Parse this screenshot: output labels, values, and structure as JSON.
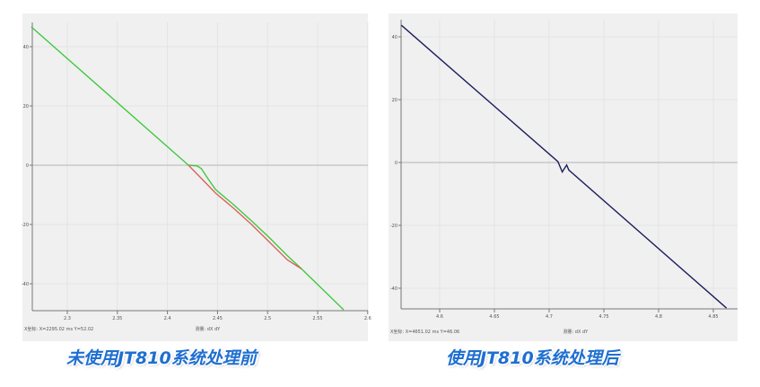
{
  "captions": [
    "未使用JT810系统处理前",
    "使用JT810系统处理后"
  ],
  "chart_data": [
    {
      "type": "line",
      "title": "",
      "xlabel": "",
      "ylabel": "",
      "xlim": [
        2.264,
        2.6
      ],
      "ylim": [
        -50,
        48
      ],
      "x_ticks": [
        "2.3",
        "2.35",
        "2.4",
        "2.45",
        "2.5",
        "2.55",
        "2.6"
      ],
      "x_tick_values": [
        2.3,
        2.35,
        2.4,
        2.45,
        2.5,
        2.55,
        2.6
      ],
      "y_ticks": [
        "40",
        "20",
        "0",
        "-20",
        "-40"
      ],
      "y_tick_values": [
        40,
        20,
        0,
        -20,
        -40
      ],
      "grid": true,
      "status_left": "X坐标: X=2295.02 ms   Y=52.02",
      "status_right": "测量: dX   dY",
      "series": [
        {
          "color": "#3ec93e",
          "points": [
            [
              2.264,
              46.7
            ],
            [
              2.421,
              0
            ],
            [
              2.43,
              -0.3
            ],
            [
              2.434,
              -1.2
            ],
            [
              2.441,
              -4.8
            ],
            [
              2.448,
              -8.2
            ],
            [
              2.466,
              -13.3
            ],
            [
              2.484,
              -18.8
            ],
            [
              2.502,
              -24.5
            ],
            [
              2.52,
              -30.6
            ],
            [
              2.534,
              -35
            ],
            [
              2.576,
              -48.8
            ]
          ]
        },
        {
          "color": "#d9625e",
          "points": [
            [
              2.421,
              0
            ],
            [
              2.436,
              -5.2
            ],
            [
              2.448,
              -9.4
            ],
            [
              2.466,
              -14.5
            ],
            [
              2.484,
              -20
            ],
            [
              2.502,
              -26
            ],
            [
              2.52,
              -32
            ],
            [
              2.534,
              -35
            ]
          ]
        }
      ]
    },
    {
      "type": "line",
      "title": "",
      "xlabel": "",
      "ylabel": "",
      "xlim": [
        4.565,
        4.87
      ],
      "ylim": [
        -48,
        47
      ],
      "x_ticks": [
        "4.6",
        "4.65",
        "4.7",
        "4.75",
        "4.8",
        "4.85"
      ],
      "x_tick_values": [
        4.6,
        4.65,
        4.7,
        4.75,
        4.8,
        4.85
      ],
      "y_ticks": [
        "40",
        "20",
        "0",
        "-20",
        "-40"
      ],
      "y_tick_values": [
        40,
        20,
        0,
        -20,
        -40
      ],
      "grid": true,
      "status_left": "X坐标: X=4651.02 ms   Y=46.06",
      "status_right": "测量: dX   dY",
      "series": [
        {
          "color": "#1c1f5c",
          "points": [
            [
              4.565,
              43.7
            ],
            [
              4.708,
              0.3
            ],
            [
              4.712,
              -3
            ],
            [
              4.716,
              -0.8
            ],
            [
              4.718,
              -2.4
            ],
            [
              4.862,
              -46.3
            ]
          ]
        }
      ]
    }
  ]
}
